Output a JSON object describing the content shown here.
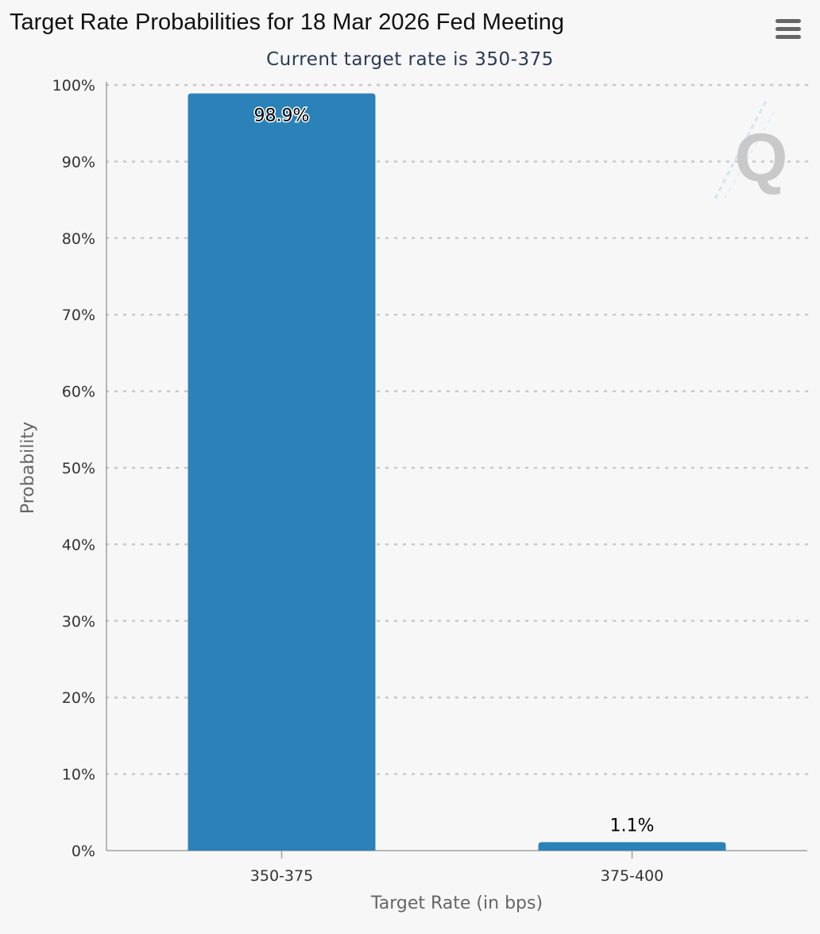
{
  "header": {
    "title": "Target Rate Probabilities for 18 Mar 2026 Fed Meeting",
    "subtitle": "Current target rate is 350-375"
  },
  "toolbar": {
    "menu_icon": "hamburger-menu-icon"
  },
  "watermark": {
    "icon": "quikstrike-q-logo-icon",
    "text": "Q"
  },
  "colors": {
    "bar": "#2b82b8",
    "grid": "#c8c8c8",
    "axis": "#a0a0a0",
    "subtitle": "#2b3a55"
  },
  "chart_data": {
    "type": "bar",
    "title": "Target Rate Probabilities for 18 Mar 2026 Fed Meeting",
    "subtitle": "Current target rate is 350-375",
    "categories": [
      "350-375",
      "375-400"
    ],
    "values": [
      98.9,
      1.1
    ],
    "data_labels": [
      "98.9%",
      "1.1%"
    ],
    "xlabel": "Target Rate (in bps)",
    "ylabel": "Probability",
    "ylim": [
      0,
      100
    ],
    "yticks": [
      0,
      10,
      20,
      30,
      40,
      50,
      60,
      70,
      80,
      90,
      100
    ],
    "ytick_labels": [
      "0%",
      "10%",
      "20%",
      "30%",
      "40%",
      "50%",
      "60%",
      "70%",
      "80%",
      "90%",
      "100%"
    ],
    "grid": "horizontal dotted",
    "legend": "none"
  }
}
